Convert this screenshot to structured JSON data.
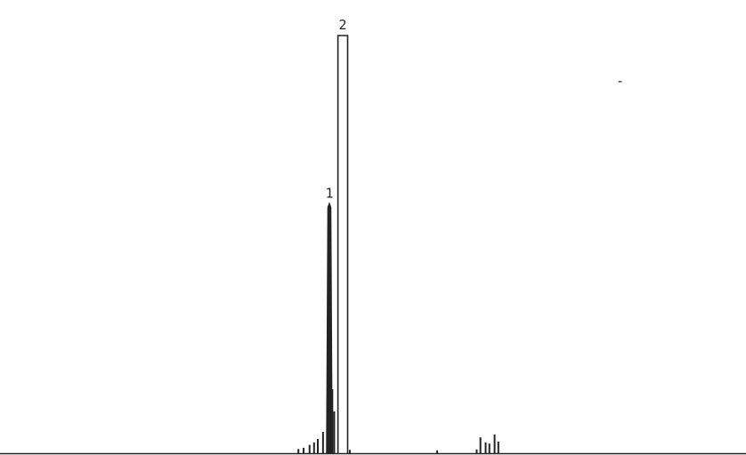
{
  "chart_data": {
    "type": "line",
    "title": "",
    "xlabel": "",
    "ylabel": "",
    "xlim": [
      0,
      100
    ],
    "ylim": [
      0,
      100
    ],
    "grid": false,
    "legend": "none",
    "colors": {
      "trace": "#222222",
      "background": "#ffffff"
    },
    "peaks": [
      {
        "label": "1",
        "x": 44.15,
        "height": 59.7,
        "width": 0.35,
        "style": "filled"
      },
      {
        "label": "2",
        "x": 45.95,
        "height": 100,
        "width": 1.3,
        "style": "open"
      }
    ],
    "minor_peaks": [
      {
        "x": 40.0,
        "height": 1.0
      },
      {
        "x": 40.7,
        "height": 1.3
      },
      {
        "x": 41.5,
        "height": 2.0
      },
      {
        "x": 42.1,
        "height": 2.6
      },
      {
        "x": 42.6,
        "height": 3.4
      },
      {
        "x": 43.3,
        "height": 5.1
      },
      {
        "x": 44.55,
        "height": 15.3
      },
      {
        "x": 44.8,
        "height": 10.0
      },
      {
        "x": 46.9,
        "height": 0.8
      },
      {
        "x": 58.6,
        "height": 0.7
      },
      {
        "x": 63.9,
        "height": 0.9
      },
      {
        "x": 64.4,
        "height": 3.8
      },
      {
        "x": 65.1,
        "height": 2.6
      },
      {
        "x": 65.6,
        "height": 2.3
      },
      {
        "x": 66.3,
        "height": 4.5
      },
      {
        "x": 66.8,
        "height": 2.8
      }
    ],
    "annotations": [
      "-"
    ]
  }
}
